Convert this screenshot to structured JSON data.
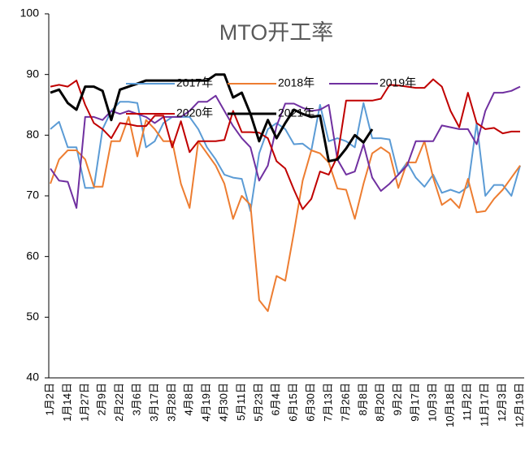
{
  "chart_data": {
    "type": "line",
    "title": "MTO开工率",
    "categories": [
      "1月2日",
      null,
      "1月14日",
      null,
      "1月27日",
      null,
      "2月9日",
      null,
      "2月22日",
      null,
      "3月6日",
      null,
      "3月17日",
      null,
      "3月28日",
      null,
      "4月8日",
      null,
      "4月19日",
      null,
      "4月30日",
      null,
      "5月11日",
      null,
      "5月23日",
      null,
      "6月4日",
      null,
      "6月15日",
      null,
      "6月30日",
      null,
      "7月13日",
      null,
      "7月26日",
      null,
      "8月8日",
      null,
      "8月20日",
      null,
      "9月2日",
      null,
      "9月17日",
      null,
      "10月3日",
      null,
      "10月18日",
      null,
      "11月2日",
      null,
      "11月17日",
      null,
      "12月3日",
      null,
      "12月19日"
    ],
    "series": [
      {
        "name": "2017年",
        "color": "#5b9bd5",
        "values": [
          81,
          82.2,
          78,
          78,
          71.3,
          71.3,
          81,
          84,
          85.5,
          85.5,
          85.3,
          78,
          79,
          82,
          83,
          83,
          83,
          81,
          78,
          76,
          73.5,
          73,
          72.8,
          67.5,
          77,
          81,
          82,
          81,
          78.5,
          78.6,
          77.5,
          85,
          79,
          79.5,
          79,
          78,
          85.3,
          79.5,
          79.5,
          79.3,
          73.5,
          75.5,
          73,
          71.5,
          73.5,
          70.5,
          71,
          70.5,
          71.5,
          82,
          70,
          71.8,
          71.8,
          70,
          75
        ]
      },
      {
        "name": "2018年",
        "color": "#ed7d31",
        "values": [
          72,
          76,
          77.5,
          77.5,
          76,
          71.5,
          71.5,
          79,
          79,
          83,
          76.5,
          82.5,
          81,
          79,
          79,
          72,
          68,
          79,
          77,
          75,
          72,
          66.2,
          70,
          68.5,
          52.8,
          51,
          56.8,
          56,
          64,
          72.5,
          77.5,
          77,
          75.5,
          71.2,
          71,
          66.2,
          72,
          77,
          78,
          77,
          71.3,
          75.5,
          75.5,
          79,
          73,
          68.5,
          69.5,
          68,
          72.8,
          67.3,
          67.5,
          69.5,
          71,
          73,
          75
        ]
      },
      {
        "name": "2019年",
        "color": "#7030a0",
        "values": [
          74.5,
          72.5,
          72.3,
          68,
          83,
          83,
          82.5,
          84,
          83.5,
          84,
          83.5,
          83,
          82,
          83,
          83,
          83,
          84,
          85.5,
          85.5,
          86.5,
          84,
          81.5,
          79.5,
          78,
          72.5,
          75,
          81.5,
          85.2,
          85.2,
          84.5,
          84,
          84.2,
          85,
          76,
          73.5,
          74,
          78.5,
          73,
          70.8,
          72,
          73.5,
          75,
          79,
          79,
          79,
          81.6,
          81.3,
          81,
          81,
          78.5,
          84,
          87,
          87,
          87.3,
          88
        ]
      },
      {
        "name": "2020年",
        "color": "#c00000",
        "values": [
          88,
          88.3,
          88,
          89,
          85,
          82,
          81,
          79.5,
          82,
          81.8,
          81.5,
          81.5,
          83.2,
          83.2,
          78,
          82.3,
          77.2,
          79,
          79,
          79,
          79.2,
          84,
          80.5,
          80.5,
          80.4,
          79.5,
          75.7,
          74.5,
          71,
          67.8,
          69.5,
          74,
          73.5,
          76.5,
          85.7,
          85.7,
          85.7,
          85.7,
          86,
          88.3,
          88.2,
          88,
          87.8,
          87.8,
          89.2,
          88,
          84,
          81.3,
          87,
          82,
          81,
          81.2,
          80.3,
          80.6,
          80.6
        ]
      },
      {
        "name": "2021年",
        "color": "#000000",
        "values": [
          87,
          87.5,
          85.3,
          84.2,
          88,
          88,
          87.3,
          82.5,
          87.5,
          88,
          88.5,
          89,
          89,
          89,
          89,
          89,
          89,
          89,
          89,
          90,
          90,
          86.2,
          87,
          83.5,
          79,
          82.5,
          79.5,
          82,
          84.2,
          83.5,
          83,
          83.2,
          75.7,
          76,
          77.8,
          80,
          78.8,
          81,
          null,
          null,
          null,
          null,
          null,
          null,
          null,
          null,
          null,
          null,
          null,
          null,
          null,
          null,
          null,
          null,
          null
        ]
      }
    ],
    "ylim": [
      40,
      100
    ],
    "yticks": [
      40,
      50,
      60,
      70,
      80,
      90,
      100
    ]
  }
}
